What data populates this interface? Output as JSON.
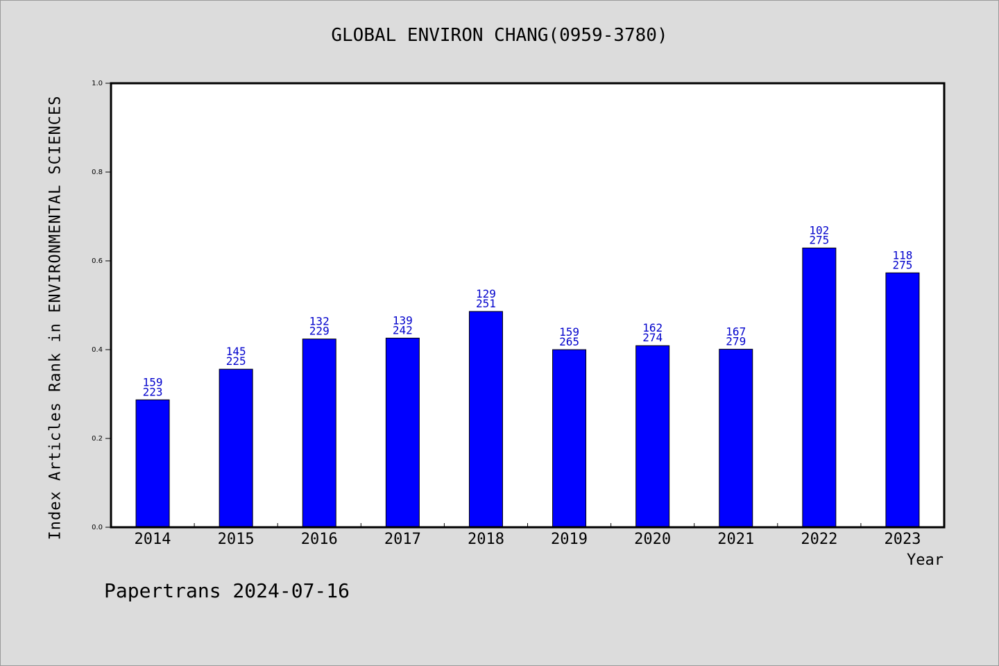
{
  "chart_data": {
    "type": "bar",
    "title": "GLOBAL ENVIRON CHANG(0959-3780)",
    "xlabel": "Year",
    "ylabel": "Index Articles Rank in ENVIRONMENTAL SCIENCES",
    "ylim": [
      0,
      1.0
    ],
    "yticks": [
      "0.0",
      "0.2",
      "0.4",
      "0.6",
      "0.8",
      "1.0"
    ],
    "categories": [
      "2014",
      "2015",
      "2016",
      "2017",
      "2018",
      "2019",
      "2020",
      "2021",
      "2022",
      "2023"
    ],
    "values": [
      0.287,
      0.356,
      0.424,
      0.426,
      0.486,
      0.4,
      0.409,
      0.401,
      0.629,
      0.573
    ],
    "rank": [
      "159",
      "145",
      "132",
      "139",
      "129",
      "159",
      "162",
      "167",
      "102",
      "118"
    ],
    "total": [
      "223",
      "225",
      "229",
      "242",
      "251",
      "265",
      "274",
      "279",
      "275",
      "275"
    ],
    "grid": false,
    "bar_color": "#0000ff",
    "label_color": "#0000cc"
  },
  "footer": "Papertrans 2024-07-16"
}
